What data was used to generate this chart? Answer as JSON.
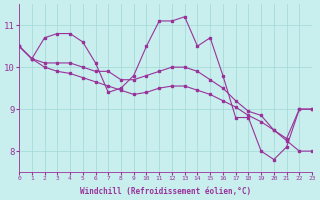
{
  "xlabel": "Windchill (Refroidissement éolien,°C)",
  "line_color": "#993399",
  "bg_color": "#c8eeee",
  "grid_color": "#a0d8d8",
  "xlim": [
    0,
    23
  ],
  "ylim": [
    7.5,
    11.5
  ],
  "xticks": [
    0,
    1,
    2,
    3,
    4,
    5,
    6,
    7,
    8,
    9,
    10,
    11,
    12,
    13,
    14,
    15,
    16,
    17,
    18,
    19,
    20,
    21,
    22,
    23
  ],
  "yticks": [
    8,
    9,
    10,
    11
  ],
  "series": [
    [
      10.5,
      10.2,
      10.7,
      10.8,
      10.8,
      10.6,
      10.1,
      9.4,
      9.5,
      9.8,
      10.5,
      11.1,
      11.1,
      11.2,
      10.5,
      10.7,
      9.8,
      8.8,
      8.8,
      8.0,
      7.8,
      8.1,
      9.0,
      9.0
    ],
    [
      10.5,
      10.2,
      10.1,
      10.1,
      10.1,
      10.0,
      9.9,
      9.9,
      9.7,
      9.7,
      9.8,
      9.9,
      10.0,
      10.0,
      9.9,
      9.7,
      9.5,
      9.2,
      8.95,
      8.85,
      8.5,
      8.3,
      9.0,
      9.0
    ],
    [
      10.5,
      10.2,
      10.0,
      9.9,
      9.85,
      9.75,
      9.65,
      9.55,
      9.45,
      9.35,
      9.4,
      9.5,
      9.55,
      9.55,
      9.45,
      9.35,
      9.2,
      9.05,
      8.85,
      8.7,
      8.5,
      8.25,
      8.0,
      8.0
    ]
  ]
}
